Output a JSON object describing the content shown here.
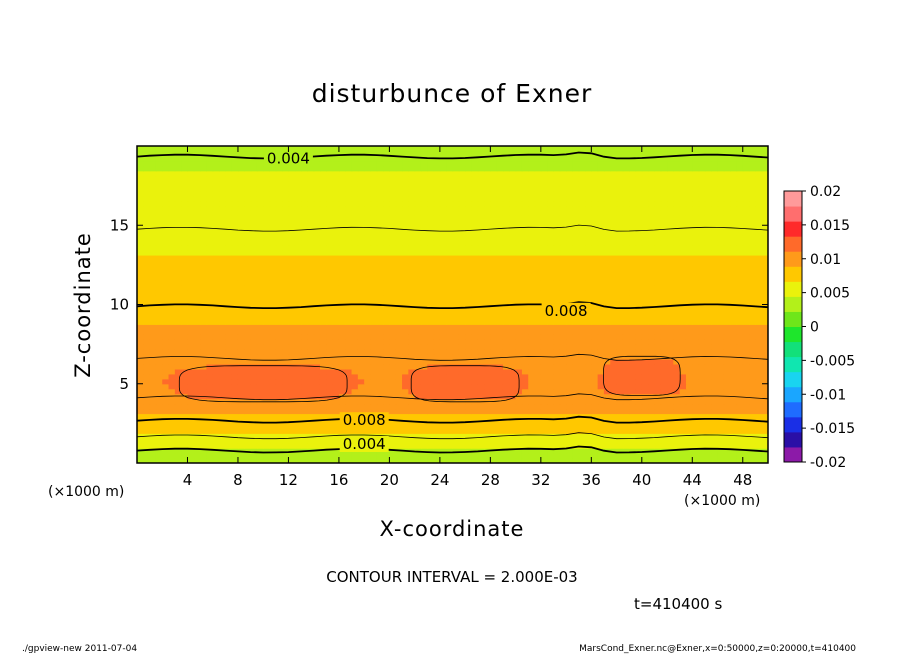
{
  "chart_data": {
    "type": "heatmap",
    "title": "disturbunce of Exner",
    "xlabel": "X-coordinate",
    "ylabel": "Z-coordinate",
    "x_unit_label": "(×1000 m)",
    "x_unit_label_right": "(×1000 m)",
    "xlim": [
      0,
      50
    ],
    "ylim": [
      0,
      20
    ],
    "x_ticks": [
      4,
      8,
      12,
      16,
      20,
      24,
      28,
      32,
      36,
      40,
      44,
      48
    ],
    "y_ticks": [
      5,
      10,
      15
    ],
    "grid": false,
    "colorbar": {
      "range": [
        -0.02,
        0.02
      ],
      "step": 0.0025,
      "labels": [
        "0.02",
        "0.015",
        "0.01",
        "0.005",
        "0",
        "-0.005",
        "-0.01",
        "-0.015",
        "-0.02"
      ],
      "colors": [
        "#8c1aa8",
        "#2a0fa6",
        "#1a2fe6",
        "#1f6cff",
        "#1aa6ff",
        "#19d4f0",
        "#10e6b0",
        "#12e07a",
        "#1ee62c",
        "#6ee61a",
        "#b3f01a",
        "#eaf20c",
        "#ffc800",
        "#ff9a1a",
        "#ff6a2a",
        "#ff2a2a",
        "#ff6e6e",
        "#ff9a9a"
      ]
    },
    "profile_z_km": [
      0,
      1,
      2,
      3,
      4,
      5,
      6,
      7,
      8,
      9,
      10,
      11,
      12,
      13,
      14,
      15,
      16,
      17,
      18,
      19,
      20
    ],
    "profile_values": [
      0.0022,
      0.0045,
      0.0068,
      0.0086,
      0.0099,
      0.0108,
      0.0103,
      0.0098,
      0.0093,
      0.0088,
      0.0079,
      0.0074,
      0.0071,
      0.0067,
      0.0063,
      0.0059,
      0.0055,
      0.0052,
      0.0048,
      0.0042,
      0.0036
    ],
    "bumps": [
      {
        "x": 10,
        "z": 5.0,
        "sx": 7.0,
        "sz": 1.2,
        "amp": 0.002
      },
      {
        "x": 26,
        "z": 5.0,
        "sx": 4.5,
        "sz": 1.2,
        "amp": 0.002
      },
      {
        "x": 40,
        "z": 5.5,
        "sx": 3.2,
        "sz": 1.3,
        "amp": 0.002
      }
    ],
    "contour_labels": [
      {
        "text": "0.004",
        "x": 12,
        "z": 19.2
      },
      {
        "text": "0.008",
        "x": 34,
        "z": 9.6
      },
      {
        "text": "0.008",
        "x": 18,
        "z": 2.7
      },
      {
        "text": "0.004",
        "x": 18,
        "z": 1.2
      }
    ],
    "contour_interval_text": "CONTOUR INTERVAL = 2.000E-03",
    "time_text": "t=410400 s"
  },
  "footer": {
    "left": "./gpview-new   2011-07-04",
    "right": "MarsCond_Exner.nc@Exner,x=0:50000,z=0:20000,t=410400"
  }
}
